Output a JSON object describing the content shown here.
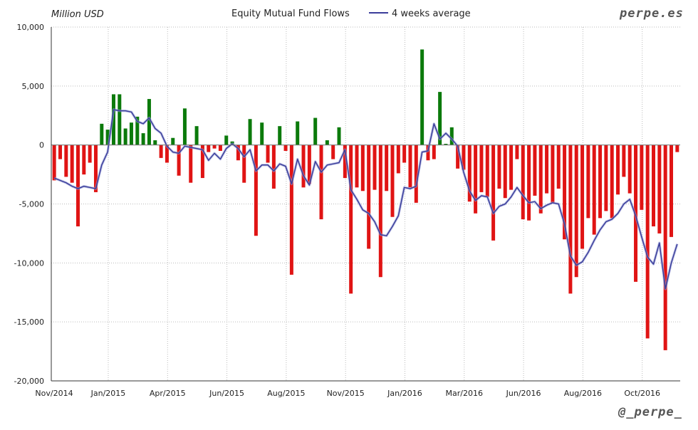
{
  "header": {
    "y_unit": "Million USD",
    "title": "Equity Mutual Fund Flows",
    "legend_line": "4 weeks average",
    "brand_top": "perpe.es",
    "brand_bottom": "@_perpe_"
  },
  "colors": {
    "positive": "#0b7a0b",
    "negative": "#e01414",
    "avg_line": "#3a3d9a",
    "grid": "#bbbbbb",
    "axis": "#333333"
  },
  "chart_data": {
    "type": "bar",
    "title": "Equity Mutual Fund Flows",
    "ylabel": "Million USD",
    "xlabel": "",
    "ylim": [
      -20000,
      10000
    ],
    "yticks": [
      10000,
      5000,
      0,
      -5000,
      -10000,
      -15000,
      -20000
    ],
    "ytick_labels": [
      "10,000",
      "5,000",
      "0",
      "-5,000",
      "-10,000",
      "-15,000",
      "-20,000"
    ],
    "xticks": [
      {
        "label": "Nov/2014",
        "week": 0
      },
      {
        "label": "Jan/2015",
        "week": 9.6
      },
      {
        "label": "Apr/2015",
        "week": 19.6
      },
      {
        "label": "Jun/2015",
        "week": 29.6
      },
      {
        "label": "Aug/2015",
        "week": 39.6
      },
      {
        "label": "Nov/2015",
        "week": 49.6
      },
      {
        "label": "Jan/2016",
        "week": 59.6
      },
      {
        "label": "Mar/2016",
        "week": 69.6
      },
      {
        "label": "Jun/2016",
        "week": 79.6
      },
      {
        "label": "Aug/2016",
        "week": 89.6
      },
      {
        "label": "Oct/2016",
        "week": 99.6
      }
    ],
    "grid": true,
    "legend": "top-center",
    "weeks": 106,
    "series": [
      {
        "name": "Equity Mutual Fund Flows",
        "kind": "bar",
        "values": [
          -3000,
          -1200,
          -2700,
          -3200,
          -6900,
          -2500,
          -1500,
          -4000,
          1800,
          1300,
          4300,
          4300,
          1400,
          1900,
          2400,
          1000,
          3900,
          400,
          -1100,
          -1500,
          600,
          -2600,
          3100,
          -3200,
          1600,
          -2800,
          -600,
          -300,
          -500,
          800,
          300,
          -1300,
          -3200,
          2200,
          -7700,
          1900,
          -1500,
          -3700,
          1600,
          -500,
          -11000,
          2000,
          -3600,
          -3300,
          2300,
          -6300,
          400,
          -1200,
          1500,
          -2800,
          -12600,
          -3600,
          -3900,
          -8800,
          -3800,
          -11200,
          -3900,
          -6100,
          -2400,
          -1500,
          -3600,
          -4900,
          8100,
          -1300,
          -1200,
          4500,
          100,
          1500,
          -2000,
          -2100,
          -4800,
          -5800,
          -4000,
          -4400,
          -8100,
          -3700,
          -4500,
          -3800,
          -1200,
          -6300,
          -6400,
          -4300,
          -5800,
          -4100,
          -4900,
          -3700,
          -8000,
          -12600,
          -11200,
          -8800,
          -6200,
          -7600,
          -6200,
          -5600,
          -6200,
          -4200,
          -2700,
          -4100,
          -11600,
          -5500,
          -16400,
          -6900,
          -7500,
          -17400,
          -7800,
          -600
        ]
      },
      {
        "name": "4 weeks average",
        "kind": "line",
        "values": [
          -2800,
          -3000,
          -3200,
          -3500,
          -3700,
          -3500,
          -3600,
          -3700,
          -1700,
          -600,
          3000,
          2900,
          2900,
          2800,
          2000,
          1800,
          2300,
          1400,
          1000,
          -100,
          -600,
          -700,
          -100,
          -200,
          -300,
          -400,
          -1300,
          -700,
          -1200,
          -300,
          100,
          -300,
          -1000,
          -400,
          -2200,
          -1700,
          -1700,
          -2200,
          -1600,
          -1800,
          -3300,
          -1200,
          -2600,
          -3400,
          -1400,
          -2300,
          -1700,
          -1600,
          -1500,
          -400,
          -3800,
          -4600,
          -5500,
          -5800,
          -6500,
          -7600,
          -7700,
          -6900,
          -6000,
          -3600,
          -3700,
          -3500,
          -600,
          -500,
          1800,
          500,
          1000,
          500,
          -100,
          -2300,
          -3900,
          -4700,
          -4300,
          -4400,
          -5800,
          -5200,
          -5000,
          -4400,
          -3600,
          -4300,
          -4900,
          -4800,
          -5400,
          -5100,
          -4900,
          -5000,
          -6700,
          -9400,
          -10200,
          -9900,
          -9100,
          -8100,
          -7200,
          -6500,
          -6300,
          -5800,
          -5000,
          -4600,
          -6000,
          -7800,
          -9500,
          -10100,
          -8300,
          -12200,
          -10000,
          -8400
        ]
      }
    ]
  }
}
